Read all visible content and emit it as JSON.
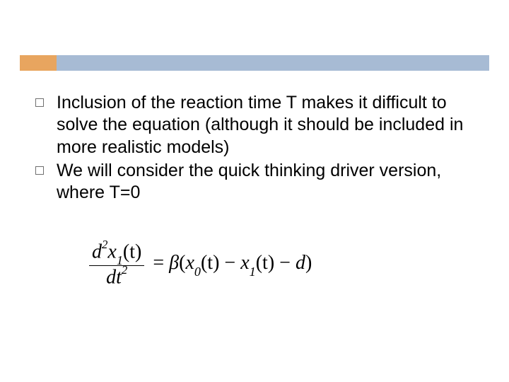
{
  "colors": {
    "accent": "#e8a55f",
    "header": "#a7bbd4",
    "text": "#000000",
    "bullet_border": "#6f6f6f",
    "background": "#ffffff"
  },
  "typography": {
    "body_fontsize": 25,
    "equation_fontsize": 28,
    "body_family": "Arial",
    "equation_family": "Times New Roman"
  },
  "bullets": [
    "Inclusion of the reaction time T makes it difficult to solve the equation (although it should be included in more realistic models)",
    "We will consider the quick thinking driver version, where T=0"
  ],
  "equation": {
    "frac_num_left": "d",
    "frac_num_sup": "2",
    "frac_num_right": "x",
    "frac_num_sub": "1",
    "frac_num_tail": "(t)",
    "frac_den_left": "dt",
    "frac_den_sup": "2",
    "eq": " = ",
    "beta": "β",
    "open": "(",
    "x0": "x",
    "x0_sub": "0",
    "x0_tail": "(t)",
    "minus1": " − ",
    "x1": "x",
    "x1_sub": "1",
    "x1_tail": "(t)",
    "minus2": " − ",
    "d_term": "d",
    "close": ")"
  }
}
